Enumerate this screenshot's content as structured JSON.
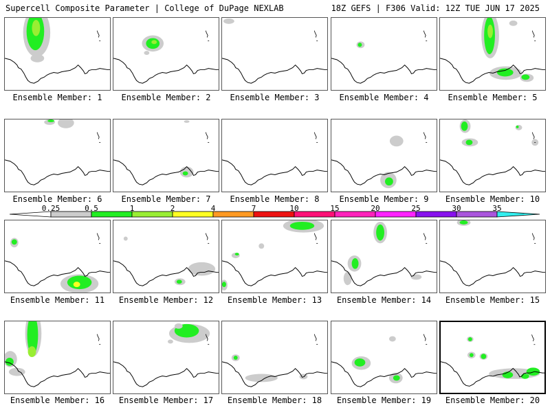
{
  "header": {
    "title_left": "Supercell Composite Parameter | College of DuPage NEXLAB",
    "title_right": "18Z GEFS | F306 Valid: 12Z TUE JUN 17 2025"
  },
  "colorbar": {
    "labels": [
      "0.25",
      "0.5",
      "1",
      "2",
      "4",
      "7",
      "10",
      "15",
      "20",
      "25",
      "30",
      "35"
    ],
    "colors": [
      "#cccccc",
      "#22ee22",
      "#99ee33",
      "#ffff22",
      "#ff9922",
      "#ee1111",
      "#ff1177",
      "#ff22bb",
      "#ff22ff",
      "#8811ee",
      "#aa55dd",
      "#33eeee"
    ]
  },
  "panels": [
    {
      "member": "Ensemble Member: 1",
      "selected": false
    },
    {
      "member": "Ensemble Member: 2",
      "selected": false
    },
    {
      "member": "Ensemble Member: 3",
      "selected": false
    },
    {
      "member": "Ensemble Member: 4",
      "selected": false
    },
    {
      "member": "Ensemble Member: 5",
      "selected": false
    },
    {
      "member": "Ensemble Member: 6",
      "selected": false
    },
    {
      "member": "Ensemble Member: 7",
      "selected": false
    },
    {
      "member": "Ensemble Member: 8",
      "selected": false
    },
    {
      "member": "Ensemble Member: 9",
      "selected": false
    },
    {
      "member": "Ensemble Member: 10",
      "selected": false
    },
    {
      "member": "Ensemble Member: 11",
      "selected": false
    },
    {
      "member": "Ensemble Member: 12",
      "selected": false
    },
    {
      "member": "Ensemble Member: 13",
      "selected": false
    },
    {
      "member": "Ensemble Member: 14",
      "selected": false
    },
    {
      "member": "Ensemble Member: 15",
      "selected": false
    },
    {
      "member": "Ensemble Member: 16",
      "selected": false
    },
    {
      "member": "Ensemble Member: 17",
      "selected": false
    },
    {
      "member": "Ensemble Member: 18",
      "selected": false
    },
    {
      "member": "Ensemble Member: 19",
      "selected": false
    },
    {
      "member": "Ensemble Member: 20",
      "selected": true
    }
  ]
}
